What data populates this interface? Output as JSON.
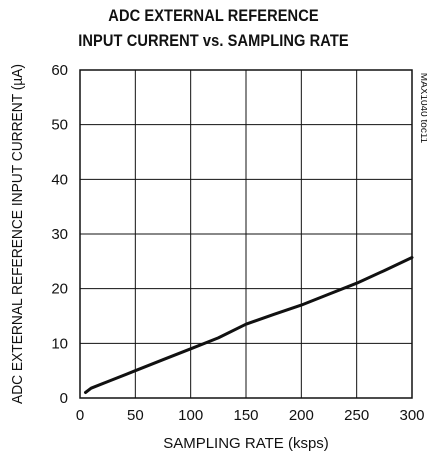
{
  "chart_data": {
    "type": "line",
    "title_line1": "ADC EXTERNAL REFERENCE",
    "title_line2": "INPUT CURRENT vs. SAMPLING RATE",
    "xlabel": "SAMPLING RATE (ksps)",
    "ylabel": "ADC EXTERNAL REFERENCE INPUT CURRENT (µA)",
    "side_label": "MAX1040 toc11",
    "xlim": [
      0,
      300
    ],
    "ylim": [
      0,
      60
    ],
    "xticks": [
      0,
      50,
      100,
      150,
      200,
      250,
      300
    ],
    "yticks": [
      0,
      10,
      20,
      30,
      40,
      50,
      60
    ],
    "grid": true,
    "series": [
      {
        "x": [
          5,
          10,
          25,
          50,
          75,
          100,
          125,
          150,
          175,
          200,
          225,
          250,
          275,
          300
        ],
        "y": [
          1.0,
          1.8,
          3.0,
          5.0,
          7.0,
          9.0,
          11.0,
          13.5,
          15.3,
          17.0,
          19.0,
          21.0,
          23.3,
          25.7
        ],
        "color": "#111111"
      }
    ]
  }
}
